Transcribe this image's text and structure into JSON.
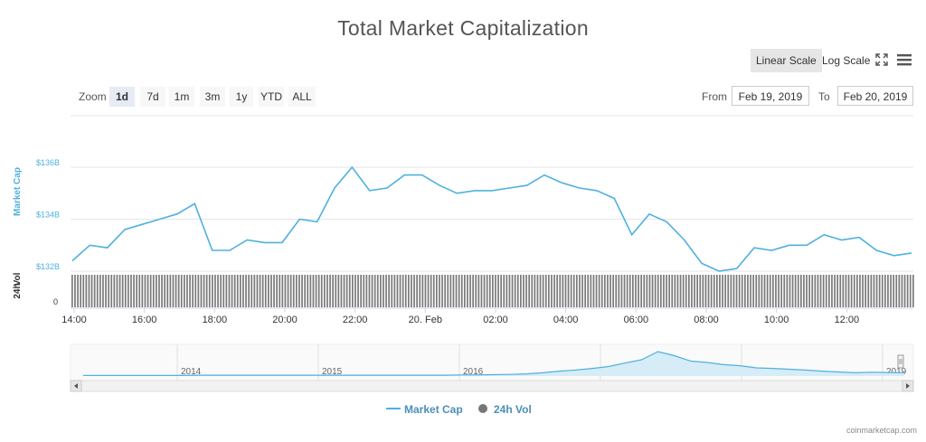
{
  "chart_data": {
    "type": "line",
    "title": "Total Market Capitalization",
    "series": [
      {
        "name": "Market Cap",
        "color": "#4eb1de",
        "x": [
          "14:00",
          "14:30",
          "15:00",
          "15:30",
          "16:00",
          "16:30",
          "17:00",
          "17:30",
          "18:00",
          "18:30",
          "19:00",
          "19:30",
          "20:00",
          "20:30",
          "21:00",
          "21:30",
          "22:00",
          "22:30",
          "23:00",
          "23:30",
          "00:00",
          "00:30",
          "01:00",
          "01:30",
          "02:00",
          "02:30",
          "03:00",
          "03:30",
          "04:00",
          "04:30",
          "05:00",
          "05:30",
          "06:00",
          "06:30",
          "07:00",
          "07:30",
          "08:00",
          "08:30",
          "09:00",
          "09:30",
          "10:00",
          "10:30",
          "11:00",
          "11:30",
          "12:00",
          "12:30",
          "13:00",
          "13:30",
          "13:50"
        ],
        "values": [
          132.5,
          132.9,
          133.0,
          133.5,
          133.9,
          133.9,
          134.3,
          134.5,
          132.9,
          132.7,
          133.3,
          133.0,
          133.2,
          133.9,
          134.0,
          135.1,
          136.1,
          135.0,
          135.3,
          135.6,
          135.8,
          135.2,
          135.1,
          135.0,
          135.2,
          135.1,
          135.4,
          135.6,
          135.5,
          135.1,
          135.2,
          134.7,
          133.5,
          134.1,
          134.0,
          133.1,
          132.4,
          131.9,
          132.2,
          132.8,
          132.9,
          132.9,
          133.1,
          133.3,
          133.3,
          133.2,
          132.9,
          132.5,
          132.8
        ]
      },
      {
        "name": "24h Vol",
        "color": "#7a7a7a",
        "values": []
      }
    ],
    "x_tick_labels": [
      "14:00",
      "16:00",
      "18:00",
      "20:00",
      "22:00",
      "20. Feb",
      "02:00",
      "04:00",
      "06:00",
      "08:00",
      "10:00",
      "12:00"
    ],
    "y_ticks": [
      "$136B",
      "$134B",
      "$132B"
    ],
    "ylim": [
      132,
      136
    ],
    "ylabel": "Market Cap",
    "ylabel2": "24h Vol",
    "vol_zero_label": "0",
    "navigator_years": [
      "2014",
      "2015",
      "2016",
      "2017",
      "2018",
      "2019"
    ],
    "navigator_values": [
      0.02,
      0.02,
      0.02,
      0.02,
      0.02,
      0.02,
      0.02,
      0.03,
      0.03,
      0.03,
      0.03,
      0.03,
      0.03,
      0.03,
      0.03,
      0.03,
      0.03,
      0.03,
      0.03,
      0.03,
      0.03,
      0.03,
      0.03,
      0.04,
      0.04,
      0.05,
      0.06,
      0.08,
      0.12,
      0.18,
      0.22,
      0.28,
      0.35,
      0.48,
      0.6,
      0.9,
      0.75,
      0.55,
      0.5,
      0.42,
      0.38,
      0.3,
      0.28,
      0.25,
      0.22,
      0.18,
      0.15,
      0.12,
      0.14,
      0.13,
      0.12
    ],
    "legend_placement": "bottom"
  },
  "scale_buttons": {
    "linear": "Linear Scale",
    "log": "Log Scale"
  },
  "zoom": {
    "label": "Zoom",
    "options": [
      "1d",
      "7d",
      "1m",
      "3m",
      "1y",
      "YTD",
      "ALL"
    ],
    "active": "1d"
  },
  "range": {
    "from_label": "From",
    "from_value": "Feb 19, 2019",
    "to_label": "To",
    "to_value": "Feb 20, 2019"
  },
  "legend": {
    "market_cap": "Market Cap",
    "vol": "24h Vol"
  },
  "credit": "coinmarketcap.com",
  "icons": {
    "fullscreen": "fullscreen-icon",
    "menu": "menu-icon"
  }
}
